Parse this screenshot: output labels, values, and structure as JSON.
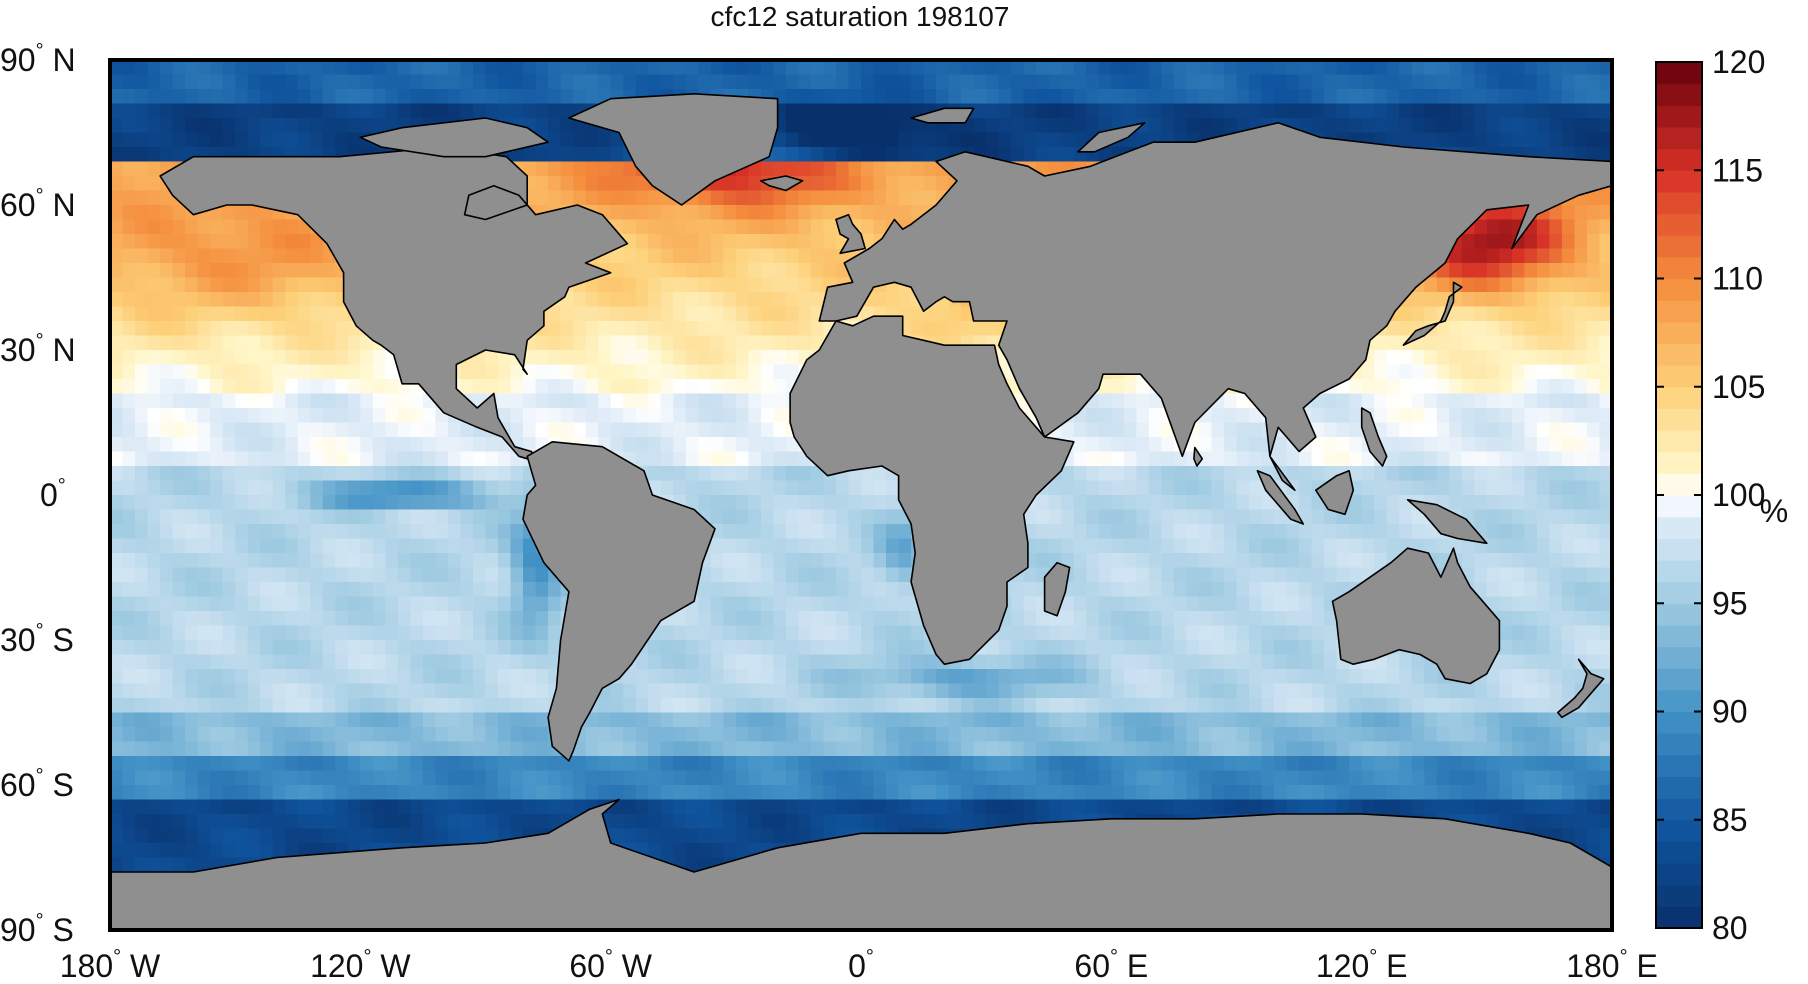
{
  "chart_data": {
    "type": "heatmap",
    "title": "cfc12 saturation 198107",
    "projection": "equirectangular",
    "x_ticks": [
      {
        "value": -180,
        "label": "180",
        "hemi": "W"
      },
      {
        "value": -120,
        "label": "120",
        "hemi": "W"
      },
      {
        "value": -60,
        "label": "60",
        "hemi": "W"
      },
      {
        "value": 0,
        "label": "0",
        "hemi": ""
      },
      {
        "value": 60,
        "label": "60",
        "hemi": "E"
      },
      {
        "value": 120,
        "label": "120",
        "hemi": "E"
      },
      {
        "value": 180,
        "label": "180",
        "hemi": "E"
      }
    ],
    "y_ticks": [
      {
        "value": 90,
        "label": "90",
        "hemi": "N"
      },
      {
        "value": 60,
        "label": "60",
        "hemi": "N"
      },
      {
        "value": 30,
        "label": "30",
        "hemi": "N"
      },
      {
        "value": 0,
        "label": "0",
        "hemi": ""
      },
      {
        "value": -30,
        "label": "30",
        "hemi": "S"
      },
      {
        "value": -60,
        "label": "60",
        "hemi": "S"
      },
      {
        "value": -90,
        "label": "90",
        "hemi": "S"
      }
    ],
    "xlim": [
      -180,
      180
    ],
    "ylim": [
      -90,
      90
    ],
    "colorbar": {
      "label": "%",
      "range": [
        80,
        120
      ],
      "ticks": [
        80,
        85,
        90,
        95,
        100,
        105,
        110,
        115,
        120
      ]
    },
    "colors": {
      "land": "#8f8f8f",
      "coast": "#000000",
      "low": "#08306b",
      "mid": "#ffffff",
      "high": "#67000d"
    }
  }
}
